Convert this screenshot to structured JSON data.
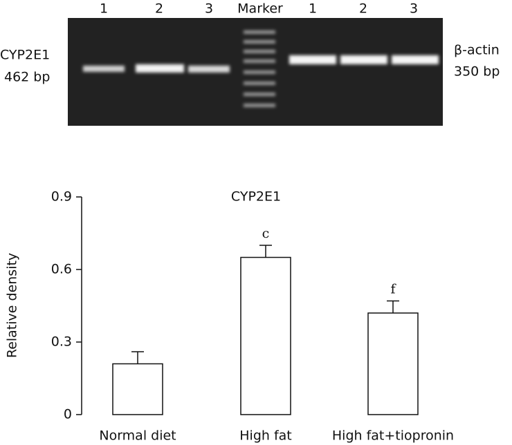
{
  "gel": {
    "lanes": [
      "1",
      "2",
      "3",
      "Marker",
      "1",
      "2",
      "3"
    ],
    "left_labels": [
      "CYP2E1",
      "462 bp"
    ],
    "right_labels": [
      "β-actin",
      "350 bp"
    ]
  },
  "chart_data": {
    "type": "bar",
    "title": "CYP2E1",
    "y_label": "Relative density",
    "categories": [
      "Normal diet",
      "High fat",
      "High fat+tiopronin"
    ],
    "values": [
      0.21,
      0.65,
      0.42
    ],
    "errors": [
      0.05,
      0.05,
      0.05
    ],
    "significance": [
      null,
      "c",
      "f"
    ],
    "color": "#ffffff",
    "ylim": [
      0,
      0.9
    ],
    "yticks": [
      0,
      0.3,
      0.6,
      0.9
    ],
    "grid": false
  }
}
